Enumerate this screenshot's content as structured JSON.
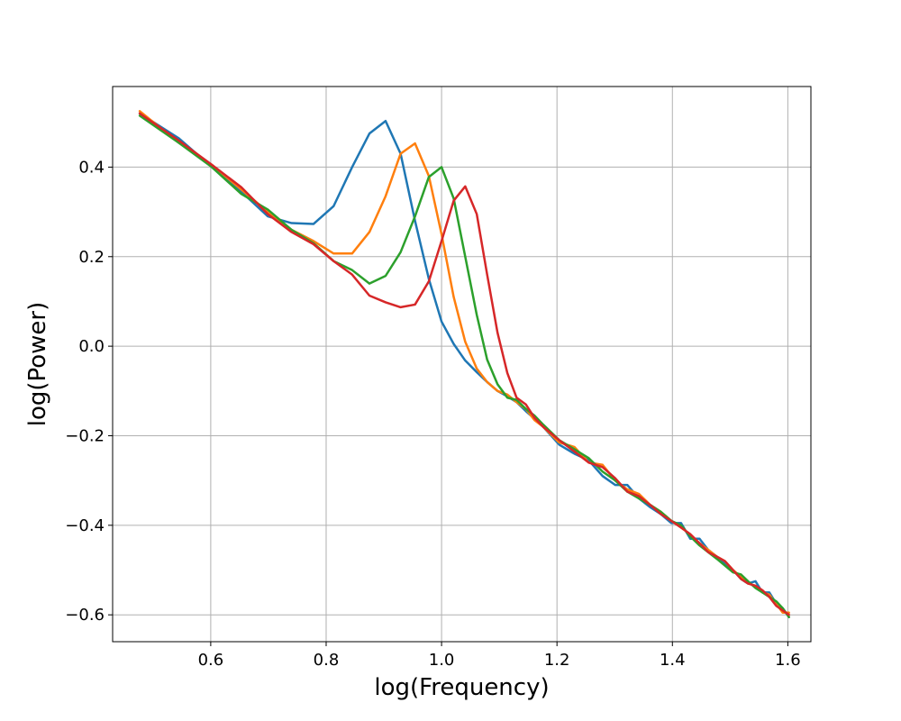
{
  "chart_data": {
    "type": "line",
    "title": "",
    "xlabel": "log(Frequency)",
    "ylabel": "log(Power)",
    "xlim": [
      0.43,
      1.64
    ],
    "ylim": [
      -0.66,
      0.58
    ],
    "xticks": [
      0.6,
      0.8,
      1.0,
      1.2,
      1.4,
      1.6
    ],
    "xtick_labels": [
      "0.6",
      "0.8",
      "1.0",
      "1.2",
      "1.4",
      "1.6"
    ],
    "yticks": [
      -0.6,
      -0.4,
      -0.2,
      0.0,
      0.2,
      0.4
    ],
    "ytick_labels": [
      "−0.6",
      "−0.4",
      "−0.2",
      "0.0",
      "0.2",
      "0.4"
    ],
    "grid": true,
    "legend": "none",
    "series": [
      {
        "color": "#1f77b4",
        "x": [
          0.477,
          0.544,
          0.602,
          0.653,
          0.699,
          0.74,
          0.778,
          0.813,
          0.845,
          0.875,
          0.903,
          0.929,
          0.954,
          0.978,
          1.0,
          1.021,
          1.041,
          1.061,
          1.079,
          1.097,
          1.114,
          1.13,
          1.146,
          1.161,
          1.176,
          1.204,
          1.23,
          1.255,
          1.279,
          1.301,
          1.322,
          1.342,
          1.362,
          1.38,
          1.398,
          1.415,
          1.431,
          1.447,
          1.462,
          1.477,
          1.491,
          1.505,
          1.519,
          1.531,
          1.544,
          1.556,
          1.568,
          1.58,
          1.591,
          1.602
        ],
        "y": [
          0.52,
          0.465,
          0.4,
          0.345,
          0.29,
          0.275,
          0.273,
          0.313,
          0.4,
          0.475,
          0.503,
          0.43,
          0.28,
          0.15,
          0.055,
          0.005,
          -0.032,
          -0.058,
          -0.08,
          -0.1,
          -0.112,
          -0.125,
          -0.145,
          -0.162,
          -0.18,
          -0.22,
          -0.24,
          -0.255,
          -0.29,
          -0.31,
          -0.31,
          -0.34,
          -0.36,
          -0.375,
          -0.395,
          -0.395,
          -0.43,
          -0.43,
          -0.455,
          -0.47,
          -0.485,
          -0.5,
          -0.52,
          -0.53,
          -0.525,
          -0.55,
          -0.55,
          -0.575,
          -0.585,
          -0.605
        ]
      },
      {
        "color": "#ff7f0e",
        "x": [
          0.477,
          0.544,
          0.602,
          0.653,
          0.699,
          0.74,
          0.778,
          0.813,
          0.845,
          0.875,
          0.903,
          0.929,
          0.954,
          0.978,
          1.0,
          1.021,
          1.041,
          1.061,
          1.079,
          1.097,
          1.114,
          1.13,
          1.146,
          1.161,
          1.176,
          1.204,
          1.23,
          1.255,
          1.279,
          1.301,
          1.322,
          1.342,
          1.362,
          1.38,
          1.398,
          1.415,
          1.431,
          1.447,
          1.462,
          1.477,
          1.491,
          1.505,
          1.519,
          1.531,
          1.544,
          1.556,
          1.568,
          1.58,
          1.591,
          1.602
        ],
        "y": [
          0.525,
          0.455,
          0.405,
          0.35,
          0.3,
          0.26,
          0.235,
          0.207,
          0.207,
          0.255,
          0.335,
          0.43,
          0.453,
          0.38,
          0.25,
          0.11,
          0.01,
          -0.05,
          -0.08,
          -0.1,
          -0.108,
          -0.125,
          -0.14,
          -0.165,
          -0.18,
          -0.215,
          -0.225,
          -0.26,
          -0.265,
          -0.3,
          -0.32,
          -0.33,
          -0.355,
          -0.37,
          -0.39,
          -0.405,
          -0.42,
          -0.44,
          -0.455,
          -0.47,
          -0.48,
          -0.5,
          -0.515,
          -0.53,
          -0.535,
          -0.55,
          -0.555,
          -0.575,
          -0.595,
          -0.595
        ]
      },
      {
        "color": "#2ca02c",
        "x": [
          0.477,
          0.544,
          0.602,
          0.653,
          0.699,
          0.74,
          0.778,
          0.813,
          0.845,
          0.875,
          0.903,
          0.929,
          0.954,
          0.978,
          1.0,
          1.021,
          1.041,
          1.061,
          1.079,
          1.097,
          1.114,
          1.13,
          1.146,
          1.161,
          1.176,
          1.204,
          1.23,
          1.255,
          1.279,
          1.301,
          1.322,
          1.342,
          1.362,
          1.38,
          1.398,
          1.415,
          1.431,
          1.447,
          1.462,
          1.477,
          1.491,
          1.505,
          1.519,
          1.531,
          1.544,
          1.556,
          1.568,
          1.58,
          1.591,
          1.602
        ],
        "y": [
          0.515,
          0.455,
          0.4,
          0.34,
          0.305,
          0.26,
          0.23,
          0.19,
          0.17,
          0.14,
          0.157,
          0.21,
          0.29,
          0.378,
          0.4,
          0.33,
          0.2,
          0.07,
          -0.03,
          -0.085,
          -0.115,
          -0.12,
          -0.14,
          -0.155,
          -0.175,
          -0.21,
          -0.23,
          -0.25,
          -0.28,
          -0.3,
          -0.325,
          -0.34,
          -0.355,
          -0.37,
          -0.39,
          -0.4,
          -0.425,
          -0.445,
          -0.46,
          -0.475,
          -0.49,
          -0.505,
          -0.51,
          -0.525,
          -0.54,
          -0.55,
          -0.56,
          -0.57,
          -0.585,
          -0.605
        ]
      },
      {
        "color": "#d62728",
        "x": [
          0.477,
          0.544,
          0.602,
          0.653,
          0.699,
          0.74,
          0.778,
          0.813,
          0.845,
          0.875,
          0.903,
          0.929,
          0.954,
          0.978,
          1.0,
          1.021,
          1.041,
          1.061,
          1.079,
          1.097,
          1.114,
          1.13,
          1.146,
          1.161,
          1.176,
          1.204,
          1.23,
          1.255,
          1.279,
          1.301,
          1.322,
          1.342,
          1.362,
          1.38,
          1.398,
          1.415,
          1.431,
          1.447,
          1.462,
          1.477,
          1.491,
          1.505,
          1.519,
          1.531,
          1.544,
          1.556,
          1.568,
          1.58,
          1.591,
          1.602
        ],
        "y": [
          0.52,
          0.46,
          0.405,
          0.355,
          0.295,
          0.255,
          0.228,
          0.19,
          0.16,
          0.113,
          0.098,
          0.087,
          0.093,
          0.145,
          0.235,
          0.325,
          0.357,
          0.295,
          0.16,
          0.03,
          -0.06,
          -0.115,
          -0.13,
          -0.16,
          -0.18,
          -0.21,
          -0.235,
          -0.26,
          -0.27,
          -0.295,
          -0.325,
          -0.335,
          -0.355,
          -0.375,
          -0.39,
          -0.405,
          -0.42,
          -0.44,
          -0.46,
          -0.47,
          -0.48,
          -0.5,
          -0.52,
          -0.53,
          -0.535,
          -0.545,
          -0.56,
          -0.58,
          -0.59,
          -0.6
        ]
      }
    ]
  }
}
